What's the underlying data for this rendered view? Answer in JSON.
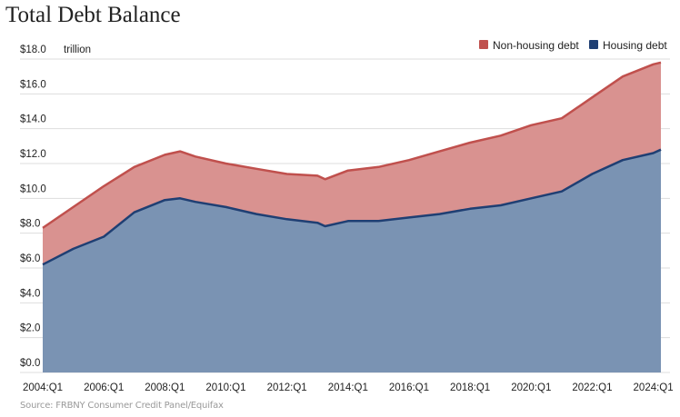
{
  "chart_data": {
    "type": "area",
    "stacked": true,
    "title": "Total Debt Balance",
    "ylabel_unit": "trillion",
    "source": "Source: FRBNY Consumer Credit Panel/Equifax",
    "x_ticks": [
      "2004:Q1",
      "2006:Q1",
      "2008:Q1",
      "2010:Q1",
      "2012:Q1",
      "2014:Q1",
      "2016:Q1",
      "2018:Q1",
      "2020:Q1",
      "2022:Q1",
      "2024:Q1"
    ],
    "y_ticks": [
      "$0.0",
      "$2.0",
      "$4.0",
      "$6.0",
      "$8.0",
      "$10.0",
      "$12.0",
      "$14.0",
      "$16.0",
      "$18.0"
    ],
    "ylim": [
      0,
      18
    ],
    "grid": true,
    "legend_position": "top-right",
    "x": [
      "2004:Q1",
      "2005:Q1",
      "2006:Q1",
      "2007:Q1",
      "2008:Q1",
      "2008:Q3",
      "2009:Q1",
      "2010:Q1",
      "2011:Q1",
      "2012:Q1",
      "2013:Q1",
      "2013:Q2",
      "2014:Q1",
      "2015:Q1",
      "2016:Q1",
      "2017:Q1",
      "2018:Q1",
      "2019:Q1",
      "2020:Q1",
      "2021:Q1",
      "2022:Q1",
      "2023:Q1",
      "2024:Q1",
      "2024:Q2"
    ],
    "series": [
      {
        "name": "Housing debt",
        "color": "#1f3f73",
        "fill": "#7a93b3",
        "values": [
          6.2,
          7.1,
          7.8,
          9.2,
          9.9,
          10.0,
          9.8,
          9.5,
          9.1,
          8.8,
          8.6,
          8.4,
          8.7,
          8.7,
          8.9,
          9.1,
          9.4,
          9.6,
          10.0,
          10.4,
          11.4,
          12.2,
          12.6,
          12.8
        ]
      },
      {
        "name": "Non-housing debt",
        "color": "#c0504d",
        "fill": "#d99290",
        "values": [
          2.1,
          2.4,
          2.9,
          2.6,
          2.6,
          2.7,
          2.6,
          2.5,
          2.6,
          2.6,
          2.7,
          2.7,
          2.9,
          3.1,
          3.3,
          3.6,
          3.8,
          4.0,
          4.2,
          4.2,
          4.4,
          4.8,
          5.1,
          5.0
        ]
      }
    ]
  }
}
